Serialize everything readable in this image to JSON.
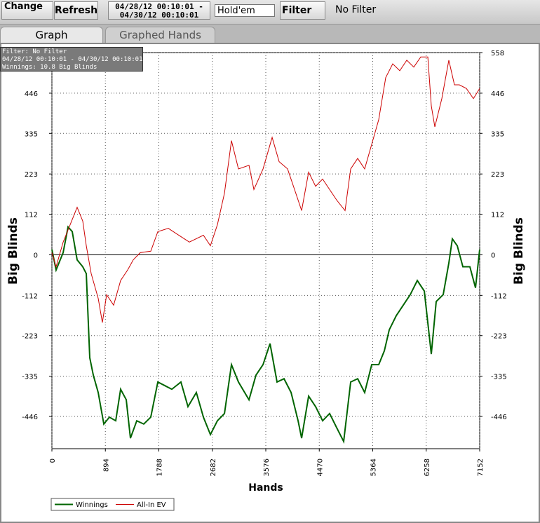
{
  "toolbar": {
    "change": "Change",
    "refresh": "Refresh",
    "date_range": "04/28/12 00:10:01 - 04/30/12 00:10:01",
    "game": "Hold'em",
    "filter": "Filter",
    "filter_status": "No Filter"
  },
  "tabs": [
    "Graph",
    "Graphed Hands"
  ],
  "filter_box": {
    "line1": "Filter: No Filter",
    "line2": "04/28/12 00:10:01 - 04/30/12 00:10:01",
    "line3": "Winnings: 10.8 Big Blinds"
  },
  "chart_data": {
    "type": "line",
    "xlabel": "Hands",
    "ylabel": "Big Blinds",
    "y2label": "Big Blinds",
    "xlim": [
      0,
      7152
    ],
    "xticks": [
      0,
      894,
      1788,
      2682,
      3576,
      4470,
      5364,
      6258,
      7152
    ],
    "ylim": [
      -535,
      558
    ],
    "yticks": [
      -446,
      -335,
      -223,
      -112,
      0,
      112,
      223,
      335,
      446,
      558
    ],
    "grid": true,
    "series": [
      {
        "name": "Winnings",
        "color": "#006400",
        "x": [
          0,
          70,
          188,
          270,
          340,
          422,
          516,
          575,
          633,
          692,
          774,
          868,
          962,
          1067,
          1149,
          1243,
          1313,
          1419,
          1536,
          1653,
          1771,
          1888,
          2005,
          2157,
          2275,
          2415,
          2533,
          2650,
          2767,
          2885,
          3002,
          3119,
          3295,
          3412,
          3530,
          3647,
          3764,
          3881,
          3999,
          4116,
          4175,
          4292,
          4409,
          4526,
          4643,
          4761,
          4878,
          4995,
          5112,
          5229,
          5347,
          5464,
          5558,
          5640,
          5757,
          5874,
          5991,
          6109,
          6226,
          6343,
          6425,
          6542,
          6636,
          6695,
          6777,
          6871,
          6988,
          7082,
          7152
        ],
        "values": [
          15,
          -42,
          6,
          77,
          64,
          -14,
          -33,
          -52,
          -284,
          -332,
          -380,
          -467,
          -448,
          -458,
          -371,
          -400,
          -506,
          -458,
          -467,
          -448,
          -351,
          -361,
          -371,
          -351,
          -419,
          -380,
          -448,
          -496,
          -458,
          -438,
          -303,
          -351,
          -400,
          -332,
          -303,
          -245,
          -351,
          -342,
          -380,
          -458,
          -506,
          -390,
          -419,
          -458,
          -438,
          -477,
          -515,
          -351,
          -342,
          -380,
          -303,
          -303,
          -265,
          -207,
          -168,
          -139,
          -110,
          -71,
          -100,
          -274,
          -129,
          -110,
          -23,
          44,
          25,
          -33,
          -33,
          -91,
          15
        ]
      },
      {
        "name": "All-In EV",
        "color": "#cc0000",
        "x": [
          0,
          70,
          188,
          305,
          422,
          516,
          575,
          657,
          774,
          844,
          915,
          1032,
          1149,
          1266,
          1360,
          1477,
          1653,
          1771,
          1946,
          2122,
          2298,
          2533,
          2650,
          2767,
          2885,
          3002,
          3119,
          3295,
          3377,
          3530,
          3682,
          3799,
          3940,
          4057,
          4175,
          4292,
          4409,
          4526,
          4643,
          4761,
          4901,
          4995,
          5112,
          5229,
          5347,
          5464,
          5581,
          5698,
          5816,
          5933,
          6050,
          6167,
          6285,
          6343,
          6402,
          6519,
          6636,
          6730,
          6812,
          6929,
          7047,
          7152
        ],
        "values": [
          6,
          -33,
          35,
          83,
          131,
          93,
          25,
          -52,
          -120,
          -187,
          -110,
          -139,
          -71,
          -42,
          -14,
          6,
          10,
          64,
          73,
          54,
          35,
          54,
          25,
          83,
          170,
          315,
          237,
          247,
          180,
          237,
          324,
          257,
          237,
          180,
          122,
          228,
          189,
          209,
          180,
          151,
          122,
          237,
          266,
          237,
          305,
          373,
          489,
          527,
          508,
          537,
          518,
          546,
          546,
          411,
          353,
          431,
          537,
          469,
          469,
          459,
          431,
          459
        ]
      }
    ]
  }
}
